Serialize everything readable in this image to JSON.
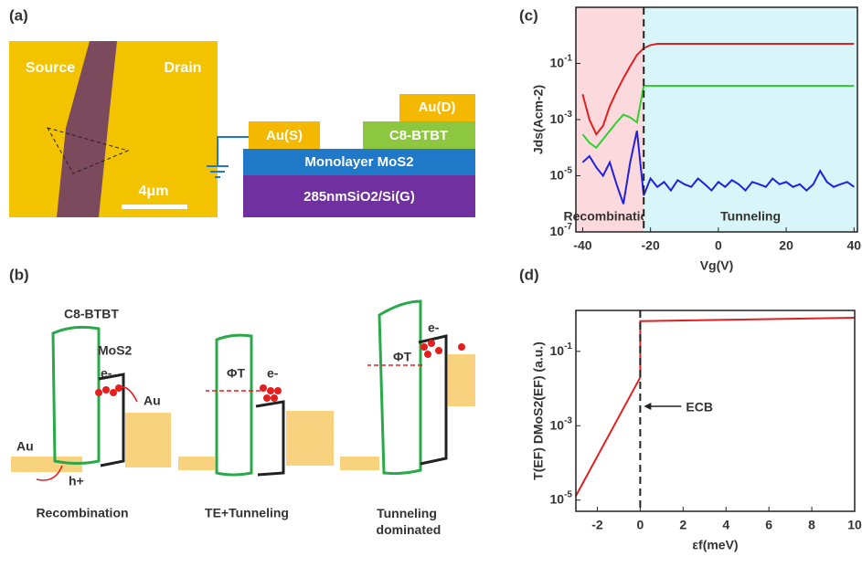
{
  "panels": {
    "a": {
      "label": "(a)",
      "photo_labels": [
        "Source",
        "Drain",
        "4μm"
      ],
      "layers": [
        "Au(D)",
        "Au(S)",
        "C8-BTBT",
        "Monolayer MoS2",
        "285nmSiO2/Si(G)"
      ]
    },
    "b": {
      "label": "(b)",
      "texts": [
        "C8-BTBT",
        "MoS2",
        "e-",
        "Au",
        "Au",
        "h+",
        "ΦT",
        "e-",
        "ΦT",
        "e-"
      ],
      "captions": [
        "Recombination",
        "TE+Tunneling",
        "Tunneling dominated"
      ]
    },
    "c": {
      "label": "(c)"
    },
    "d": {
      "label": "(d)"
    }
  },
  "chart_data": [
    {
      "type": "line",
      "ylabel": "Jds(Acm-2)",
      "xlabel": "Vg(V)",
      "yscale": "log",
      "xlim": [
        -42,
        41
      ],
      "ylim": [
        1e-07,
        10
      ],
      "xticks": [
        -40,
        -20,
        0,
        20,
        40
      ],
      "yticks": [
        {
          "value": 1e-07,
          "label": "10-7"
        },
        {
          "value": 1e-05,
          "label": "10-5"
        },
        {
          "value": 0.001,
          "label": "10-3"
        },
        {
          "value": 0.1,
          "label": "10-1"
        }
      ],
      "regions": [
        {
          "label": "Recombination",
          "xrange": [
            -42,
            -22
          ],
          "color": "#fbd9dc"
        },
        {
          "label": "Tunneling",
          "xrange": [
            -22,
            41
          ],
          "color": "#d8f6f9"
        }
      ],
      "vline": -22,
      "x": [
        -40,
        -38,
        -36,
        -34,
        -32,
        -30,
        -28,
        -26,
        -24,
        -22,
        -20,
        -18,
        -16,
        -14,
        -12,
        -10,
        -8,
        -6,
        -4,
        -2,
        0,
        2,
        4,
        6,
        8,
        10,
        12,
        14,
        16,
        18,
        20,
        22,
        24,
        26,
        28,
        30,
        32,
        34,
        36,
        38,
        40
      ],
      "series": [
        {
          "color": "#e02020",
          "values": [
            0.008,
            0.001,
            0.0003,
            0.0006,
            0.003,
            0.01,
            0.03,
            0.08,
            0.2,
            0.35,
            0.45,
            0.5,
            0.5,
            0.5,
            0.5,
            0.5,
            0.5,
            0.5,
            0.5,
            0.5,
            0.5,
            0.5,
            0.5,
            0.5,
            0.5,
            0.5,
            0.5,
            0.5,
            0.5,
            0.5,
            0.5,
            0.5,
            0.5,
            0.5,
            0.5,
            0.5,
            0.5,
            0.5,
            0.5,
            0.5,
            0.5
          ]
        },
        {
          "color": "#30d030",
          "values": [
            0.0003,
            0.00015,
            0.0001,
            0.0002,
            0.0004,
            0.0008,
            0.0015,
            0.0012,
            0.0008,
            0.016,
            0.016,
            0.016,
            0.016,
            0.016,
            0.016,
            0.016,
            0.016,
            0.016,
            0.016,
            0.016,
            0.016,
            0.016,
            0.016,
            0.016,
            0.016,
            0.016,
            0.016,
            0.016,
            0.016,
            0.016,
            0.016,
            0.016,
            0.016,
            0.016,
            0.016,
            0.016,
            0.016,
            0.016,
            0.016,
            0.016,
            0.016
          ]
        },
        {
          "color": "#2020e0",
          "values": [
            3e-05,
            5e-05,
            2e-05,
            1e-05,
            3e-05,
            5e-06,
            1e-06,
            3e-05,
            0.0004,
            2e-06,
            8e-06,
            4e-06,
            6e-06,
            3e-06,
            7e-06,
            5e-06,
            4e-06,
            8e-06,
            5e-06,
            3e-06,
            6e-06,
            4e-06,
            7e-06,
            5e-06,
            3e-06,
            6e-06,
            5e-06,
            4e-06,
            8e-06,
            5e-06,
            6e-06,
            4e-06,
            5e-06,
            3e-06,
            5e-06,
            1.5e-05,
            6e-06,
            4e-06,
            5e-06,
            6e-06,
            4e-06
          ]
        }
      ]
    },
    {
      "type": "line",
      "ylabel": "T(EF) DMoS2(EF) (a.u.)",
      "xlabel": "εf(meV)",
      "yscale": "log",
      "xlim": [
        -3,
        10
      ],
      "ylim": [
        5e-06,
        1.26
      ],
      "xticks": [
        -2,
        0,
        2,
        4,
        6,
        8,
        10
      ],
      "yticks": [
        {
          "value": 1e-05,
          "label": "10-5"
        },
        {
          "value": 0.001,
          "label": "10-3"
        },
        {
          "value": 0.1,
          "label": "10-1"
        }
      ],
      "vline": 0,
      "annotation": "ECB",
      "x": [
        -3,
        0,
        0,
        10
      ],
      "series": [
        {
          "color": "#e02020",
          "values": [
            1.3e-05,
            0.02,
            0.65,
            0.8
          ]
        }
      ]
    }
  ]
}
